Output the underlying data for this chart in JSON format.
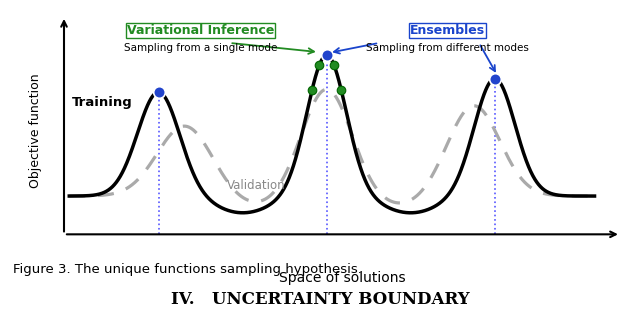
{
  "title": "Figure 3. The unique functions sampling hypothesis.",
  "subtitle": "IV.   UNCERTAINTY BOUNDARY",
  "xlabel": "Space of solutions",
  "ylabel": "Objective function",
  "training_label": "Training",
  "validation_label": "Validation",
  "vi_label": "Variational Inference",
  "vi_sub": "Sampling from a single mode",
  "ens_label": "Ensembles",
  "ens_sub": "Sampling from different modes",
  "bg_color": "#ffffff",
  "train_color": "#000000",
  "val_color": "#aaaaaa",
  "blue_dot_color": "#2244cc",
  "green_dot_color": "#228B22",
  "vi_text_color": "#228B22",
  "ens_text_color": "#1a44cc",
  "arrow_color_vi": "#228B22",
  "arrow_color_ens": "#1a44cc",
  "dotted_line_color": "#4444ff",
  "x_peak1": 1.7,
  "x_peak2": 4.9,
  "x_peak3": 8.1,
  "xlim_min": -0.1,
  "xlim_max": 10.5,
  "ylim_min": -0.55,
  "ylim_max": 2.7
}
